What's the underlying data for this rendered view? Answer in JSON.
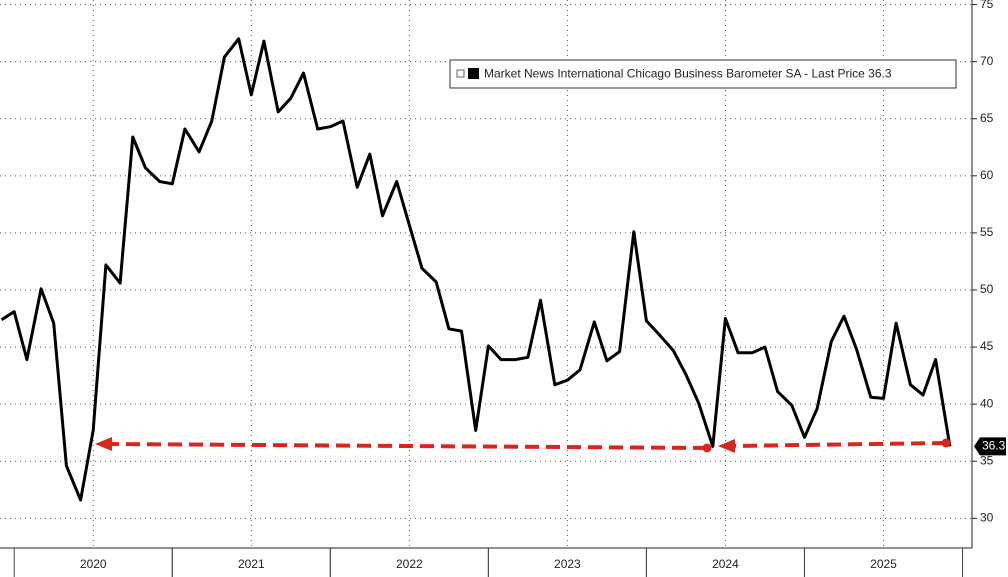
{
  "chart_data": {
    "type": "line",
    "x": [
      2019.92,
      2020.0,
      2020.08,
      2020.17,
      2020.25,
      2020.33,
      2020.42,
      2020.5,
      2020.58,
      2020.67,
      2020.75,
      2020.83,
      2020.92,
      2021.0,
      2021.08,
      2021.17,
      2021.25,
      2021.33,
      2021.42,
      2021.5,
      2021.58,
      2021.67,
      2021.75,
      2021.83,
      2021.92,
      2022.0,
      2022.08,
      2022.17,
      2022.25,
      2022.33,
      2022.42,
      2022.5,
      2022.58,
      2022.67,
      2022.75,
      2022.83,
      2022.92,
      2023.0,
      2023.08,
      2023.17,
      2023.25,
      2023.33,
      2023.42,
      2023.5,
      2023.58,
      2023.67,
      2023.75,
      2023.83,
      2023.92,
      2024.0,
      2024.08,
      2024.17,
      2024.25,
      2024.33,
      2024.42,
      2024.5,
      2024.58,
      2024.67,
      2024.75,
      2024.83,
      2024.92,
      2025.0,
      2025.08,
      2025.17,
      2025.25,
      2025.33,
      2025.42,
      2025.5,
      2025.58,
      2025.67,
      2025.75,
      2025.83,
      2025.92
    ],
    "series": [
      {
        "name": "Market News International Chicago Business Barometer SA - Last Price 36.3",
        "color": "#000000",
        "values": [
          47.4,
          48.1,
          43.9,
          50.1,
          47.1,
          34.6,
          31.6,
          37.7,
          52.2,
          50.6,
          63.4,
          60.7,
          59.5,
          59.3,
          64.1,
          62.1,
          64.8,
          70.4,
          72.0,
          67.1,
          71.8,
          65.6,
          66.8,
          69.0,
          64.1,
          64.3,
          64.8,
          59.0,
          61.9,
          56.5,
          59.5,
          55.7,
          51.9,
          50.7,
          46.6,
          46.4,
          37.7,
          45.1,
          43.9,
          43.9,
          44.1,
          49.1,
          41.7,
          42.1,
          43.0,
          47.2,
          43.8,
          44.6,
          55.1,
          47.3,
          46.1,
          44.7,
          42.6,
          40.1,
          36.3,
          47.5,
          44.5,
          44.5,
          45.0,
          41.1,
          39.9,
          37.1,
          39.6,
          45.5,
          47.7,
          44.8,
          40.6,
          40.5,
          47.1,
          41.7,
          40.8,
          43.9,
          36.3
        ]
      }
    ],
    "xlim": [
      2019.91,
      2026.06
    ],
    "xticks": [
      {
        "value": 2020.5,
        "label": "2020"
      },
      {
        "value": 2021.5,
        "label": "2021"
      },
      {
        "value": 2022.5,
        "label": "2022"
      },
      {
        "value": 2023.5,
        "label": "2023"
      },
      {
        "value": 2024.5,
        "label": "2024"
      },
      {
        "value": 2025.5,
        "label": "2025"
      }
    ],
    "ylim": [
      27.4,
      75.4
    ],
    "yticks": [
      30,
      35,
      40,
      45,
      50,
      55,
      60,
      65,
      70,
      75
    ],
    "grid": true
  }
}
